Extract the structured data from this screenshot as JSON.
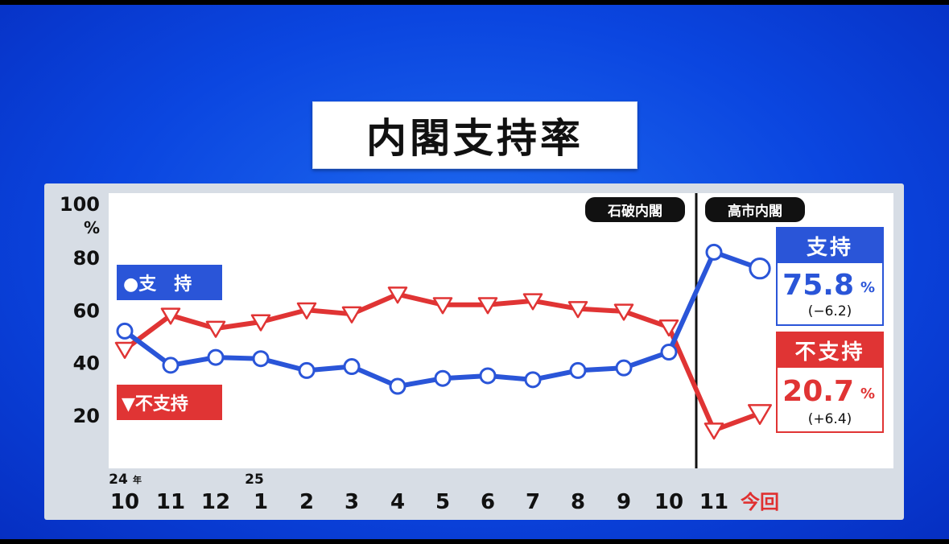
{
  "title": "内閣支持率",
  "colors": {
    "support": "#2a55d8",
    "nonsupport": "#e03434",
    "panel": "#d7dde5"
  },
  "chart_data": {
    "type": "line",
    "categories": [
      "10",
      "11",
      "12",
      "1",
      "2",
      "3",
      "4",
      "5",
      "6",
      "7",
      "8",
      "9",
      "10",
      "11",
      "今回"
    ],
    "year_markers": [
      {
        "index": 0,
        "year": "24",
        "suffix": "年"
      },
      {
        "index": 3,
        "year": "25",
        "suffix": ""
      }
    ],
    "y_unit": "%",
    "ylim": [
      0,
      100
    ],
    "yticks": [
      "100",
      "80",
      "60",
      "40",
      "20"
    ],
    "ytick_values": [
      100,
      80,
      60,
      40,
      20
    ],
    "series": [
      {
        "name": "支　持",
        "key": "support",
        "marker": "circle",
        "legend_symbol": "●",
        "values": [
          52,
          39,
          42,
          41.5,
          37,
          38.5,
          31,
          34,
          35,
          33.5,
          37,
          38,
          44,
          82,
          75.8
        ]
      },
      {
        "name": "不支持",
        "key": "nonsupport",
        "marker": "triangle-down",
        "legend_symbol": "▼",
        "values": [
          45,
          58,
          53,
          55.5,
          60,
          58.5,
          66,
          62,
          62,
          63.5,
          60.5,
          59.5,
          53.5,
          14.3,
          20.7
        ]
      }
    ],
    "eras": [
      {
        "label": "石破内閣",
        "end_before_index": 13
      },
      {
        "label": "高市内閣"
      }
    ],
    "results": {
      "support": {
        "label": "支持",
        "value": "75.8",
        "unit": "%",
        "diff": "(−6.2)"
      },
      "nonsupport": {
        "label": "不支持",
        "value": "20.7",
        "unit": "%",
        "diff": "(+6.4)"
      }
    },
    "grid": false,
    "legend": "left"
  }
}
